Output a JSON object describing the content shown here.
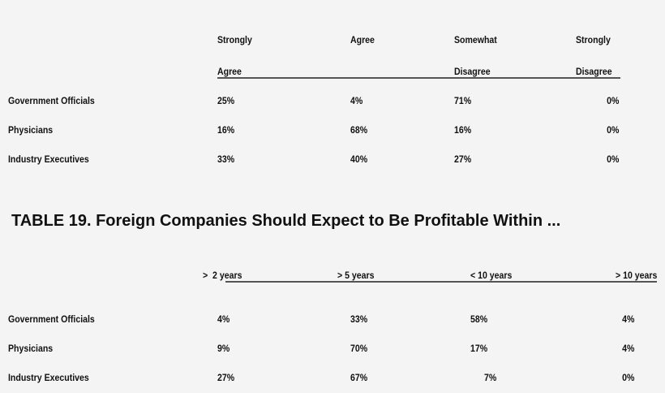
{
  "table18": {
    "headers": [
      {
        "line1": "Strongly",
        "line2": "Agree"
      },
      {
        "line1": "Agree",
        "line2": ""
      },
      {
        "line1": "Somewhat",
        "line2": "Disagree"
      },
      {
        "line1": "Strongly",
        "line2": "Disagree"
      }
    ],
    "rows": [
      {
        "label": "Government Officials",
        "values": [
          "25%",
          "4%",
          "71%",
          "0%"
        ]
      },
      {
        "label": "Physicians",
        "values": [
          "16%",
          "68%",
          "16%",
          "0%"
        ]
      },
      {
        "label": "Industry Executives",
        "values": [
          "33%",
          "40%",
          "27%",
          "0%"
        ]
      }
    ]
  },
  "table19": {
    "title": "TABLE 19. Foreign Companies Should Expect to Be Profitable Within ...",
    "headers": [
      ">  2 years",
      "> 5 years",
      "< 10 years",
      "> 10 years"
    ],
    "rows": [
      {
        "label": "Government Officials",
        "values": [
          "4%",
          "33%",
          "58%",
          "4%"
        ]
      },
      {
        "label": "Physicians",
        "values": [
          "9%",
          "70%",
          "17%",
          "4%"
        ]
      },
      {
        "label": "Industry Executives",
        "values": [
          "27%",
          "67%",
          "7%",
          "0%"
        ]
      }
    ]
  }
}
